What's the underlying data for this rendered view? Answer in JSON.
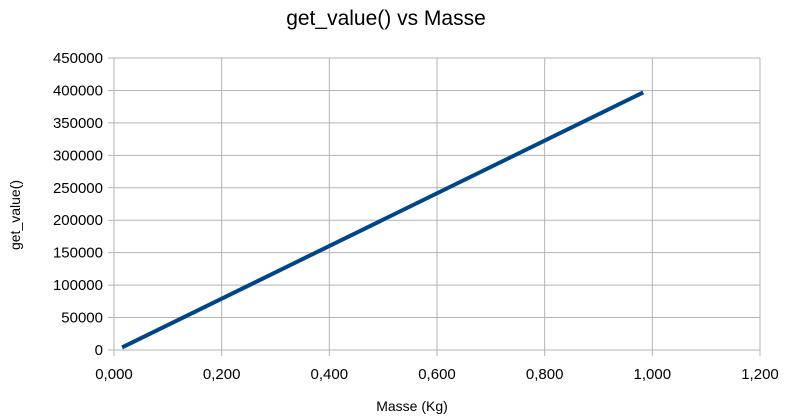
{
  "chart_data": {
    "type": "line",
    "title": "get_value() vs Masse",
    "xlabel": "Masse (Kg)",
    "ylabel": "get_value()",
    "xlim": [
      0,
      1.2
    ],
    "ylim": [
      0,
      450000
    ],
    "x_ticks": [
      "0,000",
      "0,200",
      "0,400",
      "0,600",
      "0,800",
      "1,000",
      "1,200"
    ],
    "x_tick_values": [
      0,
      0.2,
      0.4,
      0.6,
      0.8,
      1.0,
      1.2
    ],
    "y_ticks": [
      "0",
      "50000",
      "100000",
      "150000",
      "200000",
      "250000",
      "300000",
      "350000",
      "400000",
      "450000"
    ],
    "y_tick_values": [
      0,
      50000,
      100000,
      150000,
      200000,
      250000,
      300000,
      350000,
      400000,
      450000
    ],
    "grid": true,
    "legend": "none",
    "series": [
      {
        "color": "#004586",
        "x": [
          0.015,
          0.983
        ],
        "y": [
          4000,
          397000
        ]
      }
    ]
  }
}
